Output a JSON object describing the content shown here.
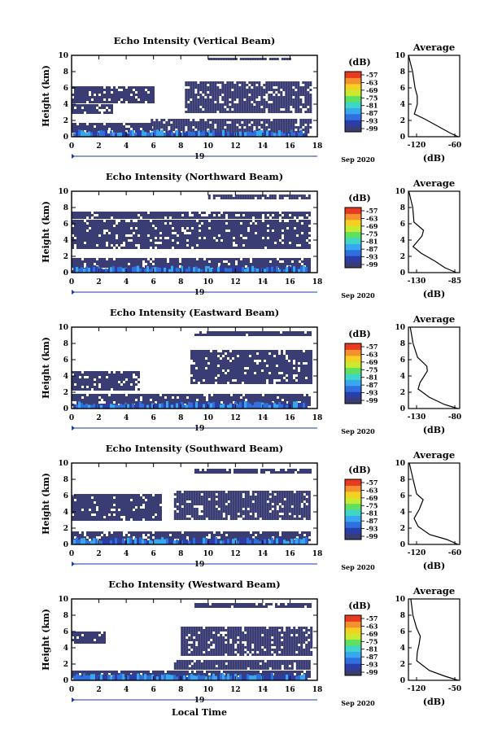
{
  "figure": {
    "date_label": "Sep 2020",
    "day_label": "19",
    "xlabel_bottom": "Local Time",
    "ylabel": "Height (km)",
    "x_ticks": [
      "0",
      "2",
      "4",
      "6",
      "8",
      "10",
      "12",
      "14",
      "16",
      "18"
    ],
    "y_ticks": [
      "0",
      "2",
      "4",
      "6",
      "8",
      "10"
    ],
    "colorbar": {
      "unit": "(dB)",
      "labels": [
        "-57",
        "-63",
        "-69",
        "-75",
        "-81",
        "-87",
        "-93",
        "-99"
      ],
      "colors": [
        "#3a3c74",
        "#2b3ea8",
        "#2f6fe0",
        "#37a8f0",
        "#3fd6c8",
        "#60e060",
        "#c8ea30",
        "#f4d020",
        "#f49030",
        "#e83a20"
      ]
    },
    "avg_title": "Average",
    "avg_xlabel": "(dB)"
  },
  "chart_data": [
    {
      "type": "heatmap",
      "title": "Echo Intensity (Vertical Beam)",
      "xlim": [
        0,
        18
      ],
      "ylim": [
        0,
        10
      ],
      "fill_color": "#3a3c74",
      "layers": [
        {
          "x": [
            0,
            5.8
          ],
          "y": [
            0.7,
            1.7
          ]
        },
        {
          "x": [
            5.8,
            17.5
          ],
          "y": [
            0.4,
            2.2
          ]
        },
        {
          "x": [
            0,
            6.0
          ],
          "y": [
            4.2,
            6.2
          ]
        },
        {
          "x": [
            8.3,
            17.5
          ],
          "y": [
            3.0,
            6.8
          ]
        },
        {
          "x": [
            0,
            3.0
          ],
          "y": [
            2.8,
            4.0
          ]
        },
        {
          "x": [
            10,
            16
          ],
          "y": [
            9.4,
            9.7
          ]
        }
      ],
      "average": {
        "xlim": [
          -120,
          -60
        ],
        "x_ticks": [
          "-120",
          "-60"
        ],
        "profile": [
          [
            -62,
            0
          ],
          [
            -72,
            0.5
          ],
          [
            -85,
            1.2
          ],
          [
            -100,
            2.2
          ],
          [
            -112,
            2.8
          ],
          [
            -110,
            4
          ],
          [
            -108,
            5
          ],
          [
            -113,
            6
          ],
          [
            -117,
            8
          ],
          [
            -120,
            10
          ]
        ]
      }
    },
    {
      "type": "heatmap",
      "title": "Echo Intensity (Northward Beam)",
      "xlim": [
        0,
        18
      ],
      "ylim": [
        0,
        10
      ],
      "fill_color": "#3a3c74",
      "layers": [
        {
          "x": [
            0,
            17.5
          ],
          "y": [
            0.2,
            1.8
          ]
        },
        {
          "x": [
            0,
            17.5
          ],
          "y": [
            3.0,
            6.5
          ]
        },
        {
          "x": [
            0,
            17.5
          ],
          "y": [
            6.8,
            7.5
          ]
        },
        {
          "x": [
            10,
            17.5
          ],
          "y": [
            9.0,
            9.6
          ]
        }
      ],
      "average": {
        "xlim": [
          -130,
          -85
        ],
        "x_ticks": [
          "-130",
          "-85"
        ],
        "profile": [
          [
            -88,
            0
          ],
          [
            -98,
            0.6
          ],
          [
            -108,
            1.4
          ],
          [
            -120,
            2.4
          ],
          [
            -125,
            3.2
          ],
          [
            -118,
            4.5
          ],
          [
            -117,
            5.2
          ],
          [
            -124,
            6.2
          ],
          [
            -127,
            8
          ],
          [
            -129,
            10
          ]
        ]
      }
    },
    {
      "type": "heatmap",
      "title": "Echo Intensity (Eastward Beam)",
      "xlim": [
        0,
        18
      ],
      "ylim": [
        0,
        10
      ],
      "fill_color": "#3a3c74",
      "layers": [
        {
          "x": [
            0,
            17.5
          ],
          "y": [
            0.3,
            1.8
          ]
        },
        {
          "x": [
            0,
            5.0
          ],
          "y": [
            2.4,
            4.6
          ]
        },
        {
          "x": [
            8.7,
            17.5
          ],
          "y": [
            3.0,
            7.2
          ]
        },
        {
          "x": [
            9,
            17.5
          ],
          "y": [
            9.0,
            9.5
          ]
        }
      ],
      "average": {
        "xlim": [
          -130,
          -80
        ],
        "x_ticks": [
          "-130",
          "-80"
        ],
        "profile": [
          [
            -82,
            0
          ],
          [
            -95,
            0.5
          ],
          [
            -110,
            1.4
          ],
          [
            -121,
            2.4
          ],
          [
            -118,
            3.2
          ],
          [
            -112,
            4.6
          ],
          [
            -111,
            5.2
          ],
          [
            -120,
            6.3
          ],
          [
            -124,
            8
          ],
          [
            -127,
            10
          ]
        ]
      }
    },
    {
      "type": "heatmap",
      "title": "Echo Intensity (Southward Beam)",
      "xlim": [
        0,
        18
      ],
      "ylim": [
        0,
        10
      ],
      "fill_color": "#3a3c74",
      "layers": [
        {
          "x": [
            0,
            17.5
          ],
          "y": [
            0.3,
            1.6
          ]
        },
        {
          "x": [
            0,
            6.5
          ],
          "y": [
            3.0,
            6.2
          ]
        },
        {
          "x": [
            7.5,
            17.5
          ],
          "y": [
            3.0,
            6.6
          ]
        },
        {
          "x": [
            9,
            17.5
          ],
          "y": [
            8.8,
            9.3
          ]
        }
      ],
      "average": {
        "xlim": [
          -120,
          -60
        ],
        "x_ticks": [
          "-120",
          "-60"
        ],
        "profile": [
          [
            -62,
            0
          ],
          [
            -75,
            0.6
          ],
          [
            -95,
            1.2
          ],
          [
            -110,
            2.2
          ],
          [
            -112,
            3.2
          ],
          [
            -108,
            4.3
          ],
          [
            -104,
            5.5
          ],
          [
            -112,
            6.2
          ],
          [
            -116,
            8
          ],
          [
            -118,
            10
          ]
        ]
      }
    },
    {
      "type": "heatmap",
      "title": "Echo Intensity (Westward Beam)",
      "xlim": [
        0,
        18
      ],
      "ylim": [
        0,
        10
      ],
      "fill_color": "#3a3c74",
      "layers": [
        {
          "x": [
            0,
            17.5
          ],
          "y": [
            0.3,
            1.2
          ]
        },
        {
          "x": [
            7.5,
            17.5
          ],
          "y": [
            1.3,
            2.5
          ]
        },
        {
          "x": [
            0,
            2.5
          ],
          "y": [
            4.6,
            6.0
          ]
        },
        {
          "x": [
            8.0,
            17.5
          ],
          "y": [
            3.2,
            6.6
          ]
        },
        {
          "x": [
            9,
            17.5
          ],
          "y": [
            9.1,
            9.5
          ]
        }
      ],
      "average": {
        "xlim": [
          -120,
          -50
        ],
        "x_ticks": [
          "-120",
          "-50"
        ],
        "profile": [
          [
            -52,
            0
          ],
          [
            -70,
            0.5
          ],
          [
            -92,
            1.2
          ],
          [
            -108,
            2.4
          ],
          [
            -110,
            3.4
          ],
          [
            -104,
            4.4
          ],
          [
            -102,
            5.4
          ],
          [
            -110,
            6.4
          ],
          [
            -115,
            8
          ],
          [
            -118,
            10
          ]
        ]
      }
    }
  ]
}
